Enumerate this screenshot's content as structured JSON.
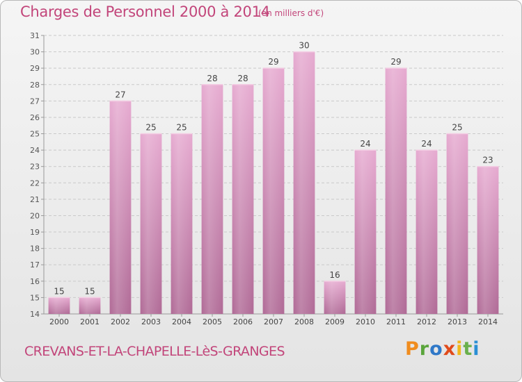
{
  "header": {
    "title": "Charges de Personnel 2000 à 2014",
    "unit": "(en milliers d'€)"
  },
  "footer": {
    "commune": "CREVANS-ET-LA-CHAPELLE-LèS-GRANGES",
    "logo": {
      "text": "Proxiti",
      "colors": [
        "#f08c1e",
        "#5aa53b",
        "#2f78c8",
        "#e04a1a",
        "#f2b81b",
        "#6ab04c",
        "#2a8fd4"
      ]
    }
  },
  "chart_data": {
    "type": "bar",
    "title": "Charges de Personnel 2000 à 2014",
    "subtitle": "(en milliers d'€)",
    "xlabel": "",
    "ylabel": "",
    "categories": [
      "2000",
      "2001",
      "2002",
      "2003",
      "2004",
      "2005",
      "2006",
      "2007",
      "2008",
      "2009",
      "2010",
      "2011",
      "2012",
      "2013",
      "2014"
    ],
    "values": [
      15,
      15,
      27,
      25,
      25,
      28,
      28,
      29,
      30,
      16,
      24,
      29,
      24,
      25,
      23
    ],
    "ylim": [
      14,
      31
    ],
    "yticks": [
      14,
      15,
      16,
      17,
      18,
      19,
      20,
      21,
      22,
      23,
      24,
      25,
      26,
      27,
      28,
      29,
      30,
      31
    ],
    "grid": "horizontal dashed",
    "data_labels": true,
    "bar_color": "#d98cb8",
    "text_color": "#c2457a"
  }
}
